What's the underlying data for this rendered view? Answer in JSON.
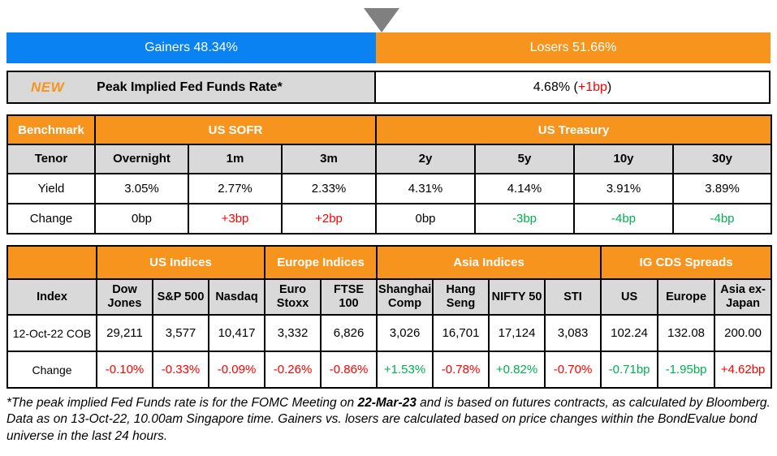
{
  "colors": {
    "brand_orange": "#F7941E",
    "gainers_blue": "#0B82F2",
    "header_gray": "#D9D9D9",
    "triangle_gray": "#808080",
    "positive_green": "#00B050",
    "negative_red": "#FF0000"
  },
  "gainers_losers": {
    "gainers_label": "Gainers 48.34%",
    "losers_label": "Losers 51.66%",
    "gainers_pct": 48.34,
    "losers_pct": 51.66
  },
  "fed_funds": {
    "badge": "NEW",
    "label": "Peak Implied Fed Funds Rate*",
    "value_prefix": "4.68% (",
    "change": "+1bp",
    "value_suffix": ")"
  },
  "benchmark_table": {
    "corner_label": "Benchmark",
    "groups": [
      {
        "label": "US SOFR",
        "span": 3
      },
      {
        "label": "US Treasury",
        "span": 4
      }
    ],
    "row_labels": {
      "tenor": "Tenor",
      "yield": "Yield",
      "change": "Change"
    },
    "columns": [
      {
        "tenor": "Overnight",
        "yield": "3.05%",
        "change": "0bp",
        "change_color": "neutral"
      },
      {
        "tenor": "1m",
        "yield": "2.77%",
        "change": "+3bp",
        "change_color": "red"
      },
      {
        "tenor": "3m",
        "yield": "2.33%",
        "change": "+2bp",
        "change_color": "red"
      },
      {
        "tenor": "2y",
        "yield": "4.31%",
        "change": "0bp",
        "change_color": "neutral"
      },
      {
        "tenor": "5y",
        "yield": "4.14%",
        "change": "-3bp",
        "change_color": "green"
      },
      {
        "tenor": "10y",
        "yield": "3.91%",
        "change": "-4bp",
        "change_color": "green"
      },
      {
        "tenor": "30y",
        "yield": "3.89%",
        "change": "-4bp",
        "change_color": "green"
      }
    ]
  },
  "indices_table": {
    "corner_label": "",
    "groups": [
      {
        "label": "US Indices",
        "span": 3
      },
      {
        "label": "Europe Indices",
        "span": 2
      },
      {
        "label": "Asia Indices",
        "span": 4
      },
      {
        "label": "IG CDS Spreads",
        "span": 3
      }
    ],
    "row_labels": {
      "index": "Index",
      "value": "12-Oct-22 COB",
      "change": "Change"
    },
    "columns": [
      {
        "name": "Dow Jones",
        "value": "29,211",
        "change": "-0.10%",
        "change_color": "red"
      },
      {
        "name": "S&P 500",
        "value": "3,577",
        "change": "-0.33%",
        "change_color": "red"
      },
      {
        "name": "Nasdaq",
        "value": "10,417",
        "change": "-0.09%",
        "change_color": "red"
      },
      {
        "name": "Euro Stoxx",
        "value": "3,332",
        "change": "-0.26%",
        "change_color": "red"
      },
      {
        "name": "FTSE 100",
        "value": "6,826",
        "change": "-0.86%",
        "change_color": "red"
      },
      {
        "name": "Shanghai Comp",
        "value": "3,026",
        "change": "+1.53%",
        "change_color": "green"
      },
      {
        "name": "Hang Seng",
        "value": "16,701",
        "change": "-0.78%",
        "change_color": "red"
      },
      {
        "name": "NIFTY 50",
        "value": "17,124",
        "change": "+0.82%",
        "change_color": "green"
      },
      {
        "name": "STI",
        "value": "3,083",
        "change": "-0.70%",
        "change_color": "red"
      },
      {
        "name": "US",
        "value": "102.24",
        "change": "-0.71bp",
        "change_color": "green"
      },
      {
        "name": "Europe",
        "value": "132.08",
        "change": "-1.95bp",
        "change_color": "green"
      },
      {
        "name": "Asia ex-Japan",
        "value": "200.00",
        "change": "+4.62bp",
        "change_color": "red"
      }
    ]
  },
  "footnote": {
    "part1": "*The peak implied Fed Funds rate is for the FOMC Meeting on ",
    "bold_date": "22-Mar-23",
    "part2": " and is based on futures contracts, as calculated by Bloomberg. Data as on 13-Oct-22, 10.00am Singapore time. Gainers vs. losers are calculated based on price changes within the BondEvalue bond universe in the last 24 hours."
  },
  "chart_data": [
    {
      "type": "bar",
      "title": "Gainers vs Losers (% of BondEvalue bond universe, last 24 hours)",
      "categories": [
        "Gainers",
        "Losers"
      ],
      "values": [
        48.34,
        51.66
      ],
      "unit": "%",
      "layout": "single horizontal stacked bar, gainers blue left, losers orange right, gray pointer at split"
    },
    {
      "type": "table",
      "title": "Peak Implied Fed Funds Rate",
      "rows": [
        [
          "Peak Implied Fed Funds Rate*",
          "4.68% (+1bp)"
        ]
      ]
    },
    {
      "type": "table",
      "title": "Benchmark yields: US SOFR and US Treasury",
      "columns": [
        "Tenor",
        "Overnight",
        "1m",
        "3m",
        "2y",
        "5y",
        "10y",
        "30y"
      ],
      "rows": [
        [
          "Yield",
          "3.05%",
          "2.77%",
          "2.33%",
          "4.31%",
          "4.14%",
          "3.91%",
          "3.89%"
        ],
        [
          "Change",
          "0bp",
          "+3bp",
          "+2bp",
          "0bp",
          "-3bp",
          "-4bp",
          "-4bp"
        ]
      ]
    },
    {
      "type": "table",
      "title": "Equity indices and IG CDS spreads",
      "columns": [
        "Index",
        "Dow Jones",
        "S&P 500",
        "Nasdaq",
        "Euro Stoxx",
        "FTSE 100",
        "Shanghai Comp",
        "Hang Seng",
        "NIFTY 50",
        "STI",
        "US",
        "Europe",
        "Asia ex-Japan"
      ],
      "rows": [
        [
          "12-Oct-22 COB",
          "29,211",
          "3,577",
          "10,417",
          "3,332",
          "6,826",
          "3,026",
          "16,701",
          "17,124",
          "3,083",
          "102.24",
          "132.08",
          "200.00"
        ],
        [
          "Change",
          "-0.10%",
          "-0.33%",
          "-0.09%",
          "-0.26%",
          "-0.86%",
          "+1.53%",
          "-0.78%",
          "+0.82%",
          "-0.70%",
          "-0.71bp",
          "-1.95bp",
          "+4.62bp"
        ]
      ]
    }
  ]
}
